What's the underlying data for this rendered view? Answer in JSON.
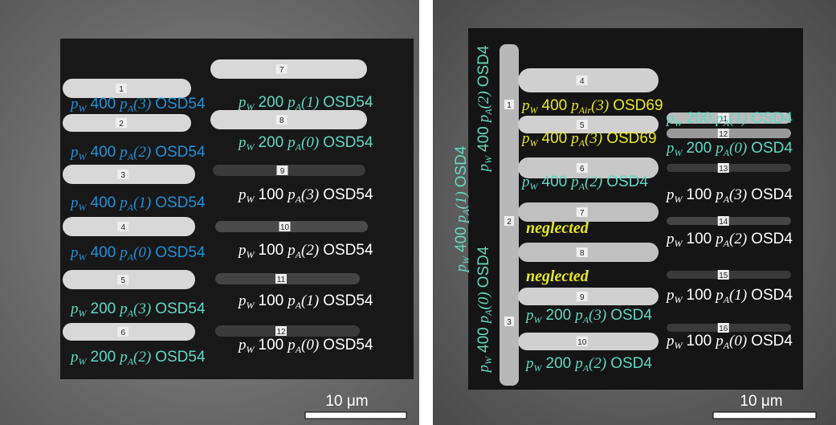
{
  "left": {
    "bar_numbers": [
      "1",
      "2",
      "3",
      "4",
      "5",
      "6",
      "7",
      "8",
      "9",
      "10",
      "11",
      "12"
    ],
    "labels": [
      [
        "p",
        "W",
        "400",
        "p",
        "A",
        "(3)",
        "OSD54"
      ],
      [
        "p",
        "W",
        "400",
        "p",
        "A",
        "(2)",
        "OSD54"
      ],
      [
        "p",
        "W",
        "400",
        "p",
        "A",
        "(1)",
        "OSD54"
      ],
      [
        "p",
        "W",
        "400",
        "p",
        "A",
        "(0)",
        "OSD54"
      ],
      [
        "p",
        "W",
        "200",
        "p",
        "A",
        "(3)",
        "OSD54"
      ],
      [
        "p",
        "W",
        "200",
        "p",
        "A",
        "(2)",
        "OSD54"
      ],
      [
        "p",
        "W",
        "200",
        "p",
        "A",
        "(1)",
        "OSD54"
      ],
      [
        "p",
        "W",
        "200",
        "p",
        "A",
        "(0)",
        "OSD54"
      ],
      [
        "p",
        "W",
        "100",
        "p",
        "A",
        "(3)",
        "OSD54"
      ],
      [
        "p",
        "W",
        "100",
        "p",
        "A",
        "(2)",
        "OSD54"
      ],
      [
        "p",
        "W",
        "100",
        "p",
        "A",
        "(1)",
        "OSD54"
      ],
      [
        "p",
        "W",
        "100",
        "p",
        "A",
        "(0)",
        "OSD54"
      ]
    ],
    "scale_bar": "10 μm"
  },
  "right": {
    "vertical_bar_numbers": [
      "1",
      "2",
      "3"
    ],
    "vertical_labels": [
      [
        "p",
        "W",
        "400",
        "p",
        "A",
        "(1)",
        "OSD4"
      ],
      [
        "p",
        "W",
        "400",
        "p",
        "A",
        "(2)",
        "OSD4"
      ],
      [
        "p",
        "W",
        "400",
        "p",
        "A",
        "(0)",
        "OSD4"
      ]
    ],
    "bar_numbers": [
      "4",
      "5",
      "6",
      "7",
      "8",
      "9",
      "10",
      "11",
      "12",
      "13",
      "14",
      "15",
      "16"
    ],
    "labels": [
      [
        "p",
        "W",
        "400",
        "p",
        "Air",
        "(3)",
        "OSD69"
      ],
      [
        "p",
        "W",
        "400",
        "p",
        "A",
        "(3)",
        "OSD69"
      ],
      [
        "p",
        "W",
        "400",
        "p",
        "A",
        "(2)",
        "OSD4"
      ],
      [
        "p",
        "W",
        "200",
        "p",
        "A",
        "(3)",
        "OSD4"
      ],
      [
        "p",
        "W",
        "200",
        "p",
        "A",
        "(2)",
        "OSD4"
      ],
      [
        "p",
        "W",
        "200",
        "p",
        "A",
        "(1)",
        "OSD4"
      ],
      [
        "p",
        "W",
        "200",
        "p",
        "A",
        "(0)",
        "OSD4"
      ],
      [
        "p",
        "W",
        "100",
        "p",
        "A",
        "(3)",
        "OSD4"
      ],
      [
        "p",
        "W",
        "100",
        "p",
        "A",
        "(2)",
        "OSD4"
      ],
      [
        "p",
        "W",
        "100",
        "p",
        "A",
        "(1)",
        "OSD4"
      ],
      [
        "p",
        "W",
        "100",
        "p",
        "A",
        "(0)",
        "OSD4"
      ]
    ],
    "neglected": [
      "neglected",
      "neglected"
    ],
    "scale_bar": "10 μm"
  }
}
